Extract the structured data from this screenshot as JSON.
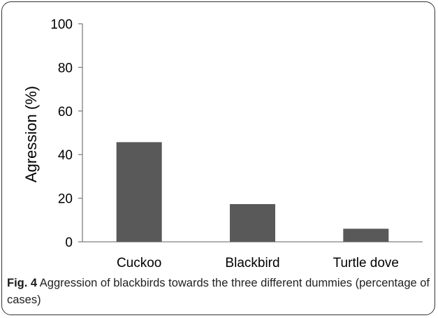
{
  "caption": {
    "label": "Fig. 4",
    "text": " Aggression of blackbirds towards the three different dummies (percentage of cases)"
  },
  "colors": {
    "bar": "#595959",
    "axis": "#808080",
    "frame": "#333333"
  },
  "chart_data": {
    "type": "bar",
    "categories": [
      "Cuckoo",
      "Blackbird",
      "Turtle dove"
    ],
    "values": [
      45.7,
      17.3,
      6.0
    ],
    "title": "",
    "xlabel": "",
    "ylabel": "Agression (%)",
    "ylim": [
      0,
      100
    ],
    "yticks": [
      "0",
      "20",
      "40",
      "60",
      "80",
      "100"
    ],
    "grid": false,
    "legend": "none"
  }
}
